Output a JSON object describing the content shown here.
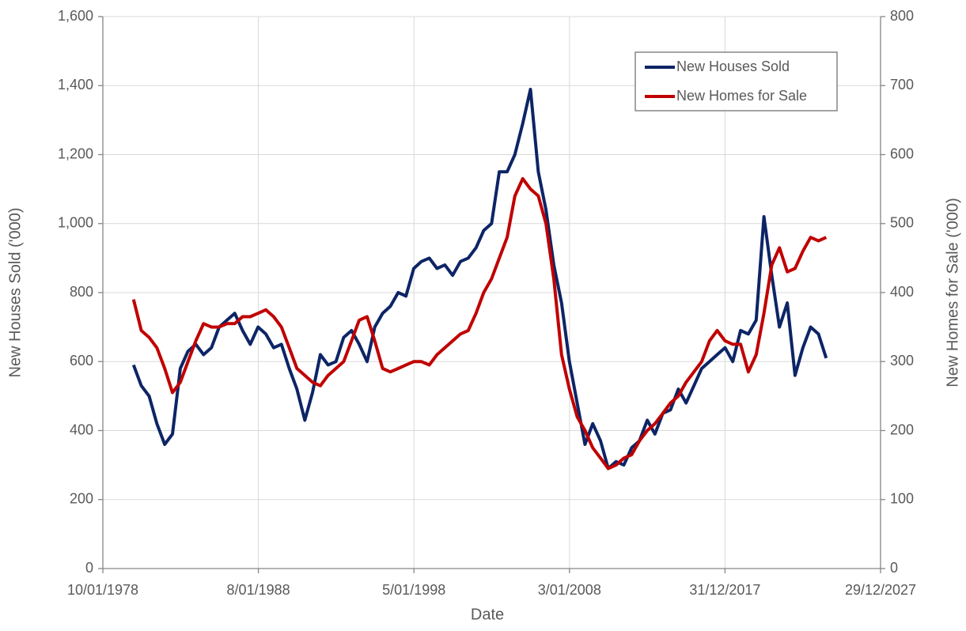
{
  "chart_data": {
    "type": "line",
    "x_label": "Date",
    "y_label": "New Houses Sold ('000)",
    "y2_label": "New Homes for Sale ('000)",
    "xlim": [
      "1978-01-10",
      "2027-12-29"
    ],
    "xticks": [
      {
        "value": "1978-01-10",
        "label": "10/01/1978"
      },
      {
        "value": "1988-01-08",
        "label": "8/01/1988"
      },
      {
        "value": "1998-01-05",
        "label": "5/01/1998"
      },
      {
        "value": "2008-01-03",
        "label": "3/01/2008"
      },
      {
        "value": "2017-12-31",
        "label": "31/12/2017"
      },
      {
        "value": "2027-12-29",
        "label": "29/12/2027"
      }
    ],
    "ylim": [
      0,
      1600
    ],
    "yticks": [
      0,
      200,
      400,
      600,
      800,
      {
        "value": 1000,
        "label": "1,000"
      },
      {
        "value": 1200,
        "label": "1,200"
      },
      {
        "value": 1400,
        "label": "1,400"
      },
      {
        "value": 1600,
        "label": "1,600"
      }
    ],
    "y2lim": [
      0,
      800
    ],
    "y2ticks": [
      0,
      100,
      200,
      300,
      400,
      500,
      600,
      700,
      800
    ],
    "grid": true,
    "legend": "upper right",
    "x": [
      "1980-01-01",
      "1980-07-01",
      "1981-01-01",
      "1981-07-01",
      "1982-01-01",
      "1982-07-01",
      "1983-01-01",
      "1983-07-01",
      "1984-01-01",
      "1984-07-01",
      "1985-01-01",
      "1985-07-01",
      "1986-01-01",
      "1986-07-01",
      "1987-01-01",
      "1987-07-01",
      "1988-01-01",
      "1988-07-01",
      "1989-01-01",
      "1989-07-01",
      "1990-01-01",
      "1990-07-01",
      "1991-01-01",
      "1991-07-01",
      "1992-01-01",
      "1992-07-01",
      "1993-01-01",
      "1993-07-01",
      "1994-01-01",
      "1994-07-01",
      "1995-01-01",
      "1995-07-01",
      "1996-01-01",
      "1996-07-01",
      "1997-01-01",
      "1997-07-01",
      "1998-01-01",
      "1998-07-01",
      "1999-01-01",
      "1999-07-01",
      "2000-01-01",
      "2000-07-01",
      "2001-01-01",
      "2001-07-01",
      "2002-01-01",
      "2002-07-01",
      "2003-01-01",
      "2003-07-01",
      "2004-01-01",
      "2004-07-01",
      "2005-01-01",
      "2005-07-01",
      "2006-01-01",
      "2006-07-01",
      "2007-01-01",
      "2007-07-01",
      "2008-01-01",
      "2008-07-01",
      "2009-01-01",
      "2009-07-01",
      "2010-01-01",
      "2010-07-01",
      "2011-01-01",
      "2011-07-01",
      "2012-01-01",
      "2012-07-01",
      "2013-01-01",
      "2013-07-01",
      "2014-01-01",
      "2014-07-01",
      "2015-01-01",
      "2015-07-01",
      "2016-01-01",
      "2016-07-01",
      "2017-01-01",
      "2017-07-01",
      "2018-01-01",
      "2018-07-01",
      "2019-01-01",
      "2019-07-01",
      "2020-01-01",
      "2020-07-01",
      "2021-01-01",
      "2021-07-01",
      "2022-01-01",
      "2022-07-01",
      "2023-01-01",
      "2023-07-01",
      "2024-01-01",
      "2024-07-01"
    ],
    "series": [
      {
        "name": "New Houses Sold",
        "color": "#0d2566",
        "values": [
          590,
          530,
          500,
          420,
          360,
          390,
          580,
          630,
          650,
          620,
          640,
          700,
          720,
          740,
          690,
          650,
          700,
          680,
          640,
          650,
          580,
          520,
          430,
          510,
          620,
          590,
          600,
          670,
          690,
          650,
          600,
          700,
          740,
          760,
          800,
          790,
          870,
          890,
          900,
          870,
          880,
          850,
          890,
          900,
          930,
          980,
          1000,
          1150,
          1150,
          1200,
          1290,
          1389,
          1150,
          1040,
          880,
          770,
          600,
          480,
          360,
          420,
          370,
          290,
          310,
          300,
          350,
          370,
          430,
          390,
          450,
          460,
          520,
          480,
          530,
          580,
          600,
          620,
          640,
          600,
          690,
          680,
          720,
          1020,
          850,
          700,
          770,
          560,
          640,
          700,
          680,
          610
        ]
      },
      {
        "name": "New Homes for Sale",
        "color": "#c00000",
        "axis": "y2",
        "values": [
          390,
          345,
          335,
          320,
          290,
          255,
          270,
          300,
          330,
          355,
          350,
          350,
          355,
          355,
          365,
          365,
          370,
          375,
          365,
          350,
          320,
          290,
          280,
          270,
          265,
          280,
          290,
          300,
          330,
          360,
          365,
          330,
          290,
          285,
          290,
          295,
          300,
          300,
          295,
          310,
          320,
          330,
          340,
          345,
          370,
          400,
          420,
          450,
          480,
          540,
          565,
          550,
          540,
          500,
          420,
          310,
          260,
          220,
          200,
          175,
          160,
          145,
          150,
          160,
          165,
          185,
          200,
          210,
          225,
          240,
          250,
          270,
          285,
          300,
          330,
          345,
          330,
          325,
          325,
          285,
          310,
          370,
          440,
          465,
          430,
          435,
          460,
          480,
          475,
          480
        ]
      }
    ]
  }
}
